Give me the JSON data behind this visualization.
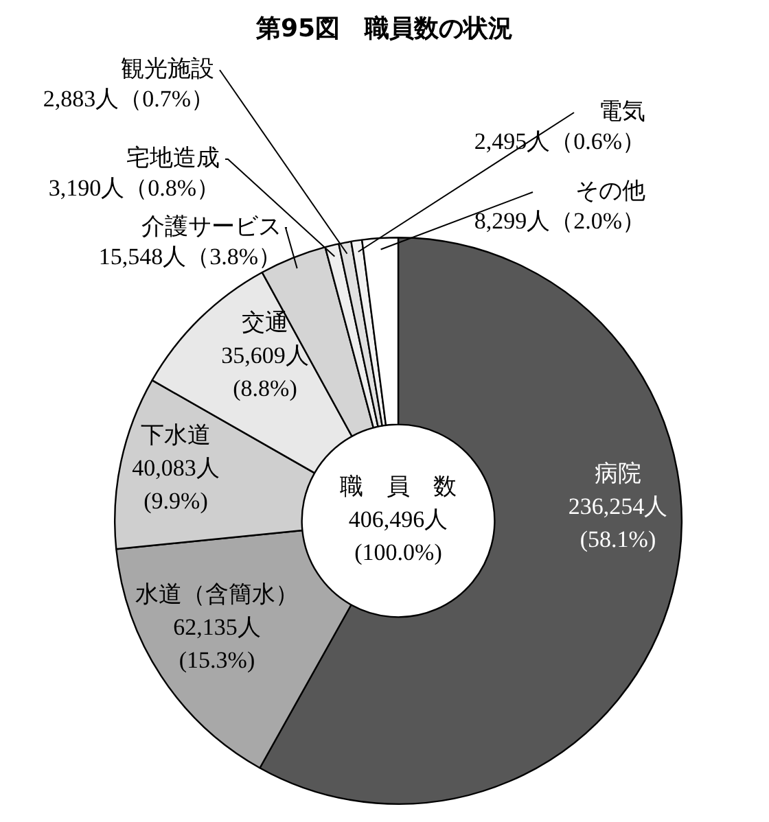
{
  "chart_data": {
    "type": "donut",
    "title": "第95図　職員数の状況",
    "categories": [
      "病院",
      "水道（含簡水）",
      "下水道",
      "交通",
      "介護サービス",
      "宅地造成",
      "観光施設",
      "電気",
      "その他"
    ],
    "values": [
      236254,
      62135,
      40083,
      35609,
      15548,
      3190,
      2883,
      2495,
      8299
    ],
    "value_labels": [
      "236,254人\n(58.1%)",
      "62,135人\n(15.3%)",
      "40,083人\n(9.9%)",
      "35,609人\n(8.8%)",
      "15,548人（3.8%）",
      "3,190人（0.8%）",
      "2,883人（0.7%）",
      "2,495人（0.6%）",
      "8,299人（2.0%）"
    ],
    "colors": [
      "#575757",
      "#a8a8a8",
      "#cfcfcf",
      "#e8e8e8",
      "#d4d4d4",
      "#eeeeee",
      "#e0e0e0",
      "#f2f2f2",
      "#ffffff"
    ],
    "annotations": [
      "職　員　数\n406,496人\n(100.0%)"
    ],
    "legend": false
  }
}
